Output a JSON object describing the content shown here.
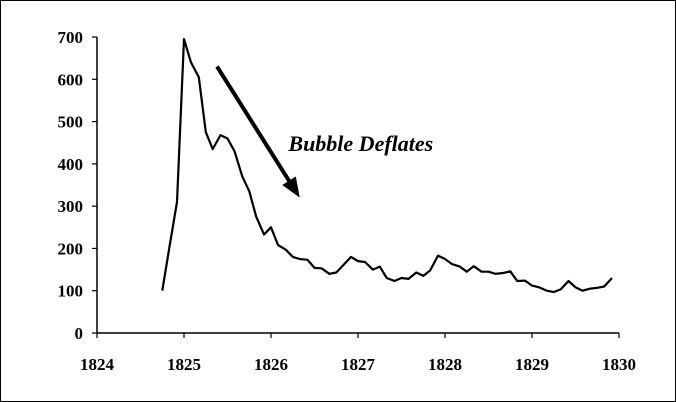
{
  "chart_data": {
    "type": "line",
    "title": "",
    "xlabel": "",
    "ylabel": "",
    "xlim": [
      1824,
      1830
    ],
    "ylim": [
      0,
      700
    ],
    "x_ticks": [
      1824,
      1825,
      1826,
      1827,
      1828,
      1829,
      1830
    ],
    "y_ticks": [
      0,
      100,
      200,
      300,
      400,
      500,
      600,
      700
    ],
    "grid": false,
    "legend": "none",
    "series": [
      {
        "color": "#000000",
        "points": [
          [
            1824.75,
            100
          ],
          [
            1824.83,
            200
          ],
          [
            1824.92,
            310
          ],
          [
            1825.0,
            695
          ],
          [
            1825.08,
            640
          ],
          [
            1825.17,
            605
          ],
          [
            1825.25,
            475
          ],
          [
            1825.33,
            435
          ],
          [
            1825.42,
            468
          ],
          [
            1825.5,
            460
          ],
          [
            1825.58,
            430
          ],
          [
            1825.67,
            370
          ],
          [
            1825.75,
            335
          ],
          [
            1825.83,
            275
          ],
          [
            1825.92,
            233
          ],
          [
            1826.0,
            250
          ],
          [
            1826.08,
            208
          ],
          [
            1826.17,
            197
          ],
          [
            1826.25,
            180
          ],
          [
            1826.33,
            175
          ],
          [
            1826.42,
            173
          ],
          [
            1826.5,
            154
          ],
          [
            1826.58,
            153
          ],
          [
            1826.67,
            140
          ],
          [
            1826.75,
            143
          ],
          [
            1826.83,
            160
          ],
          [
            1826.92,
            180
          ],
          [
            1827.0,
            170
          ],
          [
            1827.08,
            168
          ],
          [
            1827.17,
            150
          ],
          [
            1827.25,
            157
          ],
          [
            1827.33,
            130
          ],
          [
            1827.42,
            123
          ],
          [
            1827.5,
            130
          ],
          [
            1827.58,
            128
          ],
          [
            1827.67,
            143
          ],
          [
            1827.75,
            135
          ],
          [
            1827.83,
            148
          ],
          [
            1827.92,
            183
          ],
          [
            1828.0,
            175
          ],
          [
            1828.08,
            163
          ],
          [
            1828.17,
            157
          ],
          [
            1828.25,
            145
          ],
          [
            1828.33,
            158
          ],
          [
            1828.42,
            145
          ],
          [
            1828.5,
            145
          ],
          [
            1828.58,
            140
          ],
          [
            1828.67,
            142
          ],
          [
            1828.75,
            146
          ],
          [
            1828.83,
            123
          ],
          [
            1828.92,
            124
          ],
          [
            1829.0,
            112
          ],
          [
            1829.08,
            108
          ],
          [
            1829.17,
            100
          ],
          [
            1829.25,
            97
          ],
          [
            1829.33,
            103
          ],
          [
            1829.42,
            123
          ],
          [
            1829.5,
            108
          ],
          [
            1829.58,
            100
          ],
          [
            1829.67,
            105
          ],
          [
            1829.75,
            107
          ],
          [
            1829.83,
            110
          ],
          [
            1829.92,
            130
          ]
        ]
      }
    ],
    "annotations": [
      {
        "text": "Bubble Deflates",
        "x": 1826.2,
        "y": 430
      }
    ],
    "arrow": {
      "from": [
        1825.38,
        630
      ],
      "to": [
        1826.33,
        320
      ]
    }
  }
}
